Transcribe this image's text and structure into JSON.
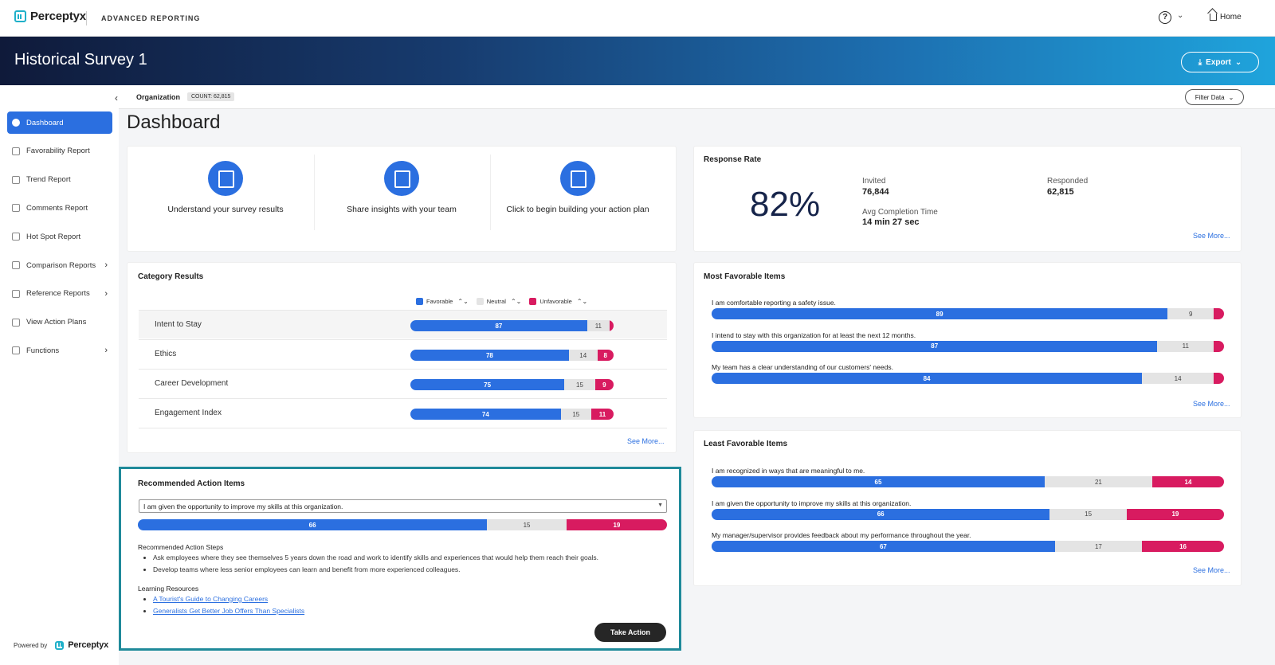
{
  "app": {
    "brand": "Perceptyx",
    "product": "ADVANCED REPORTING",
    "home_label": "Home",
    "help_glyph": "?"
  },
  "banner": {
    "title": "Historical Survey 1",
    "export_label": "Export"
  },
  "org": {
    "label": "Organization",
    "count": "COUNT: 62,815",
    "filter_label": "Filter Data"
  },
  "sidebar": {
    "items": [
      {
        "label": "Dashboard",
        "icon": "dashboard-icon",
        "chevron": false
      },
      {
        "label": "Favorability Report",
        "icon": "thumbs-up-icon",
        "chevron": false
      },
      {
        "label": "Trend Report",
        "icon": "trend-icon",
        "chevron": false
      },
      {
        "label": "Comments Report",
        "icon": "comments-icon",
        "chevron": false
      },
      {
        "label": "Hot Spot Report",
        "icon": "target-icon",
        "chevron": false
      },
      {
        "label": "Comparison Reports",
        "icon": "scale-icon",
        "chevron": true
      },
      {
        "label": "Reference Reports",
        "icon": "list-icon",
        "chevron": true
      },
      {
        "label": "View Action Plans",
        "icon": "check-circle-icon",
        "chevron": false
      },
      {
        "label": "Functions",
        "icon": "gear-icon",
        "chevron": true
      }
    ],
    "powered_by": "Powered by",
    "powered_brand": "Perceptyx"
  },
  "page": {
    "title": "Dashboard"
  },
  "quick_actions": [
    {
      "label": "Understand your survey results",
      "icon": "presentation-icon"
    },
    {
      "label": "Share insights with your team",
      "icon": "map-pin-icon"
    },
    {
      "label": "Click to begin building your action plan",
      "icon": "clipboard-check-icon"
    }
  ],
  "response_rate": {
    "title": "Response Rate",
    "percent": "82%",
    "invited_label": "Invited",
    "invited_value": "76,844",
    "responded_label": "Responded",
    "responded_value": "62,815",
    "avg_label": "Avg Completion Time",
    "avg_value": "14 min 27 sec",
    "see_more": "See More..."
  },
  "category_results": {
    "title": "Category Results",
    "legend": {
      "favorable": "Favorable",
      "neutral": "Neutral",
      "unfavorable": "Unfavorable"
    },
    "rows": [
      {
        "name": "Intent to Stay",
        "fav": 87,
        "neu": 11,
        "unf": 2,
        "unf_label": ""
      },
      {
        "name": "Ethics",
        "fav": 78,
        "neu": 14,
        "unf": 8,
        "unf_label": "8"
      },
      {
        "name": "Career Development",
        "fav": 75,
        "neu": 15,
        "unf": 9,
        "unf_label": "9"
      },
      {
        "name": "Engagement Index",
        "fav": 74,
        "neu": 15,
        "unf": 11,
        "unf_label": "11"
      }
    ],
    "see_more": "See More..."
  },
  "most_favorable": {
    "title": "Most Favorable Items",
    "items": [
      {
        "text": "I am comfortable reporting a safety issue.",
        "fav": 89,
        "neu": 9,
        "unf": 2
      },
      {
        "text": "I intend to stay with this organization for at least the next 12 months.",
        "fav": 87,
        "neu": 11,
        "unf": 2
      },
      {
        "text": "My team has a clear understanding of our customers' needs.",
        "fav": 84,
        "neu": 14,
        "unf": 2
      }
    ],
    "see_more": "See More..."
  },
  "least_favorable": {
    "title": "Least Favorable Items",
    "items": [
      {
        "text": "I am recognized in ways that are meaningful to me.",
        "fav": 65,
        "neu": 21,
        "unf": 14
      },
      {
        "text": "I am given the opportunity to improve my skills at this organization.",
        "fav": 66,
        "neu": 15,
        "unf": 19
      },
      {
        "text": "My manager/supervisor provides feedback about my performance throughout the year.",
        "fav": 67,
        "neu": 17,
        "unf": 16
      }
    ],
    "see_more": "See More..."
  },
  "recommended": {
    "title": "Recommended Action Items",
    "selected_item": "I am given the opportunity to improve my skills at this organization.",
    "fav": 66,
    "neu": 15,
    "unf": 19,
    "steps_heading": "Recommended Action Steps",
    "steps": [
      "Ask employees where they see themselves 5 years down the road and work to identify skills and experiences that would help them reach their goals.",
      "Develop teams where less senior employees can learn and benefit from more experienced colleagues."
    ],
    "resources_heading": "Learning Resources",
    "resources": [
      "A Tourist's Guide to Changing Careers",
      "Generalists Get Better Job Offers Than Specialists"
    ],
    "take_action": "Take Action"
  },
  "colors": {
    "favorable": "#2b6fe0",
    "neutral": "#e4e4e4",
    "unfavorable": "#d81b60",
    "highlight_border": "#1f8a9a"
  }
}
